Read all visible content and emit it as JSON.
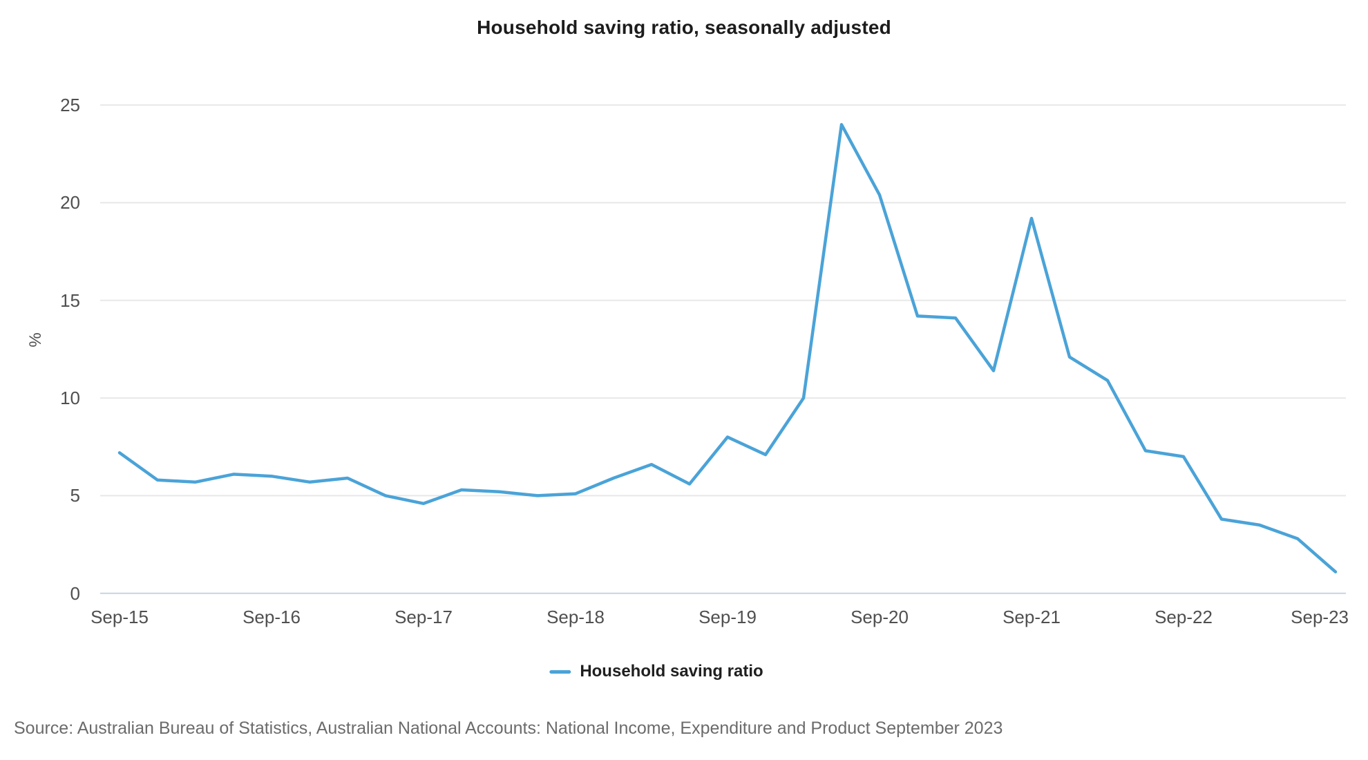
{
  "source_text": "Source: Australian Bureau of Statistics, Australian National Accounts: National Income, Expenditure and Product September 2023",
  "colors": {
    "line": "#4aa3d8",
    "gridline": "#e8e8e8",
    "zero_axis": "#c8d3e6",
    "background": "#ffffff"
  },
  "chart_data": {
    "type": "line",
    "title": "Household saving ratio, seasonally adjusted",
    "xlabel": "",
    "ylabel": "%",
    "ylim": [
      0,
      25
    ],
    "yticks": [
      0,
      5,
      10,
      15,
      20,
      25
    ],
    "grid": true,
    "legend_position": "bottom",
    "x_axis_tick_labels": [
      "Sep-15",
      "Sep-16",
      "Sep-17",
      "Sep-18",
      "Sep-19",
      "Sep-20",
      "Sep-21",
      "Sep-22",
      "Sep-23"
    ],
    "x": [
      "Sep-15",
      "Dec-15",
      "Mar-16",
      "Jun-16",
      "Sep-16",
      "Dec-16",
      "Mar-17",
      "Jun-17",
      "Sep-17",
      "Dec-17",
      "Mar-18",
      "Jun-18",
      "Sep-18",
      "Dec-18",
      "Mar-19",
      "Jun-19",
      "Sep-19",
      "Dec-19",
      "Mar-20",
      "Jun-20",
      "Sep-20",
      "Dec-20",
      "Mar-21",
      "Jun-21",
      "Sep-21",
      "Dec-21",
      "Mar-22",
      "Jun-22",
      "Sep-22",
      "Dec-22",
      "Mar-23",
      "Jun-23",
      "Sep-23"
    ],
    "series": [
      {
        "name": "Household saving ratio",
        "values": [
          7.2,
          5.8,
          5.7,
          6.1,
          6.0,
          5.7,
          5.9,
          5.0,
          4.6,
          5.3,
          5.2,
          5.0,
          5.1,
          5.9,
          6.6,
          5.6,
          8.0,
          7.1,
          10.0,
          24.0,
          20.4,
          14.2,
          14.1,
          11.4,
          19.2,
          12.1,
          10.9,
          7.3,
          7.0,
          3.8,
          3.5,
          2.8,
          1.1
        ]
      }
    ]
  }
}
